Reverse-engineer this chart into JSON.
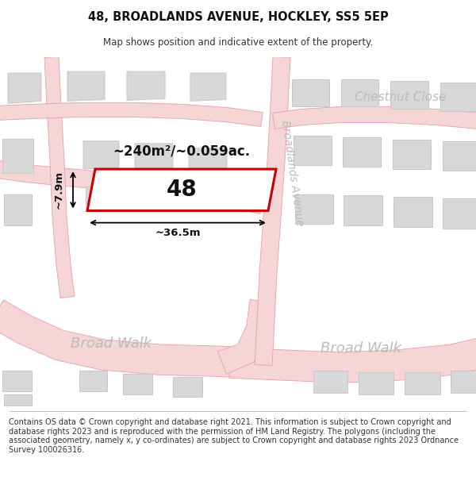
{
  "title_line1": "48, BROADLANDS AVENUE, HOCKLEY, SS5 5EP",
  "title_line2": "Map shows position and indicative extent of the property.",
  "footer_text": "Contains OS data © Crown copyright and database right 2021. This information is subject to Crown copyright and database rights 2023 and is reproduced with the permission of HM Land Registry. The polygons (including the associated geometry, namely x, y co-ordinates) are subject to Crown copyright and database rights 2023 Ordnance Survey 100026316.",
  "map_bg": "#ffffff",
  "road_fill": "#f5d5d5",
  "road_line": "#e8a0a0",
  "building_fill": "#d8d8d8",
  "building_edge": "#c8c8c8",
  "highlight_color": "#cc0000",
  "street_color": "#bbbbbb",
  "annotation_color": "#111111",
  "area_text": "~240m²/~0.059ac.",
  "width_text": "~36.5m",
  "height_text": "~7.9m",
  "property_label": "48",
  "street_broad_walk_left": "Broad Walk",
  "street_broad_walk_right": "Broad Walk",
  "street_broadlands": "Broadlands Avenue",
  "street_chestnut": "Chestnut Close"
}
